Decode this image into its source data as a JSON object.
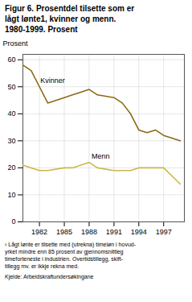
{
  "chart_data": {
    "type": "line",
    "title": "Figur 6. Prosentdel tilsette som er\nlågt lønte1, kvinner og menn.\n1980-1999. Prosent",
    "ylabel": "Prosent",
    "x": [
      1980,
      1981,
      1982,
      1983,
      1985,
      1986,
      1987,
      1988,
      1989,
      1991,
      1992,
      1993,
      1994,
      1995,
      1996,
      1997,
      1998,
      1999
    ],
    "series": [
      {
        "name": "Kvinner",
        "color": "#8B6914",
        "values": [
          58,
          56,
          50,
          44,
          46,
          47,
          48,
          49,
          47,
          46,
          44,
          40,
          34,
          33,
          34,
          32,
          31,
          30
        ]
      },
      {
        "name": "Menn",
        "color": "#C8B84A",
        "values": [
          21,
          20,
          19,
          19,
          20,
          20,
          21,
          22,
          20,
          19,
          19,
          19,
          20,
          20,
          20,
          20,
          17,
          14
        ]
      }
    ],
    "annotations": [
      {
        "text": "Kvinner",
        "x": 1982.1,
        "y": 51.5
      },
      {
        "text": "Menn",
        "x": 1988.3,
        "y": 23.5
      }
    ],
    "footnotes": [
      "¹ Lågt lønte er tilsette med (utrekna) timeløn i hovud-\nyrket mindre enn 85 prosent av gjennomsnittleg\ntimeforteneste i industrien. Overtidstillegg, skift-\ntillegg mv. er ikkje rekna med.",
      "Kjelde:  Arbeidskraftundersøkingane"
    ],
    "xlim": [
      1980,
      1999.5
    ],
    "xticks": [
      1982,
      1985,
      1988,
      1991,
      1994,
      1997
    ],
    "ylim": [
      0,
      62
    ],
    "yticks": [
      0,
      10,
      20,
      30,
      40,
      50,
      60
    ],
    "grid": true,
    "legend": false
  }
}
